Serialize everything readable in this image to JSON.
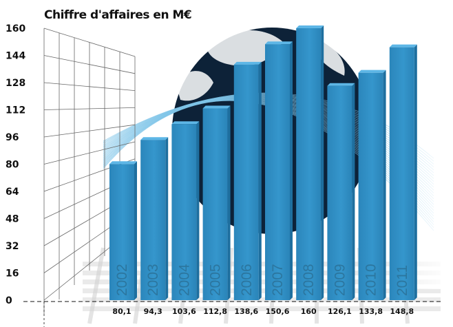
{
  "chart_data": {
    "type": "bar",
    "title": "Chiffre d'affaires en M€",
    "xlabel": "",
    "ylabel": "",
    "categories": [
      "2002",
      "2003",
      "2004",
      "2005",
      "2006",
      "2007",
      "2008",
      "2009",
      "2010",
      "2011"
    ],
    "values": [
      80.1,
      94.3,
      103.6,
      112.8,
      138.6,
      150.6,
      160,
      126.1,
      133.8,
      148.8
    ],
    "value_labels": [
      "80,1",
      "94,3",
      "103,6",
      "112,8",
      "138,6",
      "150,6",
      "160",
      "126,1",
      "133,8",
      "148,8"
    ],
    "ylim": [
      0,
      160
    ],
    "yticks": [
      0,
      16,
      32,
      48,
      64,
      80,
      96,
      112,
      128,
      144,
      160
    ],
    "grid": true,
    "colors": {
      "bar_front": "#2f8fc5",
      "bar_side": "#1e6f9f",
      "bar_top": "#5db6e6",
      "globe": "#0d2238"
    }
  }
}
